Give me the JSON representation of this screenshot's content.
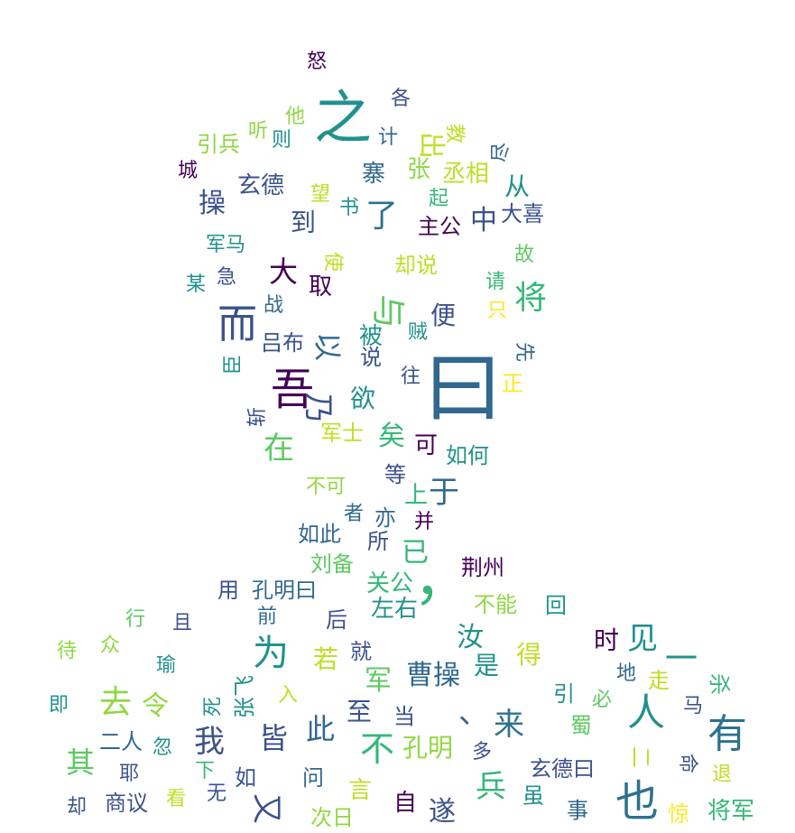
{
  "palette": {
    "dark_purple": "#440154",
    "indigo": "#3b528b",
    "blue": "#31688e",
    "teal": "#21918c",
    "green": "#35b779",
    "lime": "#90d743",
    "yellow": "#fde725"
  },
  "words": [
    {
      "text": "曰",
      "size": 0.39,
      "color": "#31688e"
    },
    {
      "text": "之",
      "size": 0.27,
      "color": "#21918c"
    },
    {
      "text": "吾",
      "size": 0.22,
      "color": "#440154"
    },
    {
      "text": "，",
      "size": 0.22,
      "color": "#35b779"
    },
    {
      "text": "也",
      "size": 0.2,
      "color": "#2c728e"
    },
    {
      "text": "而",
      "size": 0.18,
      "color": "#3b528b"
    },
    {
      "text": "有",
      "size": 0.18,
      "color": "#2c728e"
    },
    {
      "text": "人",
      "size": 0.17,
      "color": "#21918c"
    },
    {
      "text": "为",
      "size": 0.16,
      "color": "#21918c"
    },
    {
      "text": "与",
      "size": 0.16,
      "color": "#5ec962"
    },
    {
      "text": "、",
      "size": 0.15,
      "color": "#31688e"
    },
    {
      "text": "不",
      "size": 0.15,
      "color": "#35b779"
    },
    {
      "text": "乃",
      "size": 0.15,
      "color": "#3b528b"
    },
    {
      "text": "以",
      "size": 0.14,
      "color": "#31688e"
    },
    {
      "text": "将",
      "size": 0.14,
      "color": "#35b779"
    },
    {
      "text": "去",
      "size": 0.14,
      "color": "#90d743"
    },
    {
      "text": "一",
      "size": 0.14,
      "color": "#21918c"
    },
    {
      "text": "兵",
      "size": 0.13,
      "color": "#35b779"
    },
    {
      "text": "来",
      "size": 0.13,
      "color": "#2c728e"
    },
    {
      "text": "我",
      "size": 0.13,
      "color": "#3b528b"
    },
    {
      "text": "此",
      "size": 0.12,
      "color": "#31688e"
    },
    {
      "text": "皆",
      "size": 0.12,
      "color": "#3b528b"
    },
    {
      "text": "又",
      "size": 0.12,
      "color": "#3b528b"
    },
    {
      "text": "见",
      "size": 0.12,
      "color": "#21918c"
    },
    {
      "text": "了",
      "size": 0.12,
      "color": "#2c728e"
    },
    {
      "text": "在",
      "size": 0.12,
      "color": "#5ec962"
    },
    {
      "text": "令",
      "size": 0.11,
      "color": "#90d743"
    },
    {
      "text": "于",
      "size": 0.11,
      "color": "#31688e"
    },
    {
      "text": "曹操",
      "size": 0.11,
      "color": "#31688e"
    },
    {
      "text": "大",
      "size": 0.11,
      "color": "#440154"
    },
    {
      "text": "军",
      "size": 0.11,
      "color": "#5ec962"
    },
    {
      "text": "孔明",
      "size": 0.1,
      "color": "#90d743"
    },
    {
      "text": "其",
      "size": 0.1,
      "color": "#5ec962"
    },
    {
      "text": "矣",
      "size": 0.1,
      "color": "#35b779"
    },
    {
      "text": "欲",
      "size": 0.1,
      "color": "#21918c"
    },
    {
      "text": "已",
      "size": 0.1,
      "color": "#35b779"
    },
    {
      "text": "汝",
      "size": 0.1,
      "color": "#21918c"
    },
    {
      "text": "便",
      "size": 0.1,
      "color": "#3b528b"
    },
    {
      "text": "是",
      "size": 0.1,
      "color": "#21918c"
    },
    {
      "text": "中",
      "size": 0.1,
      "color": "#3b528b"
    },
    {
      "text": "遂",
      "size": 0.1,
      "color": "#3b528b"
    },
    {
      "text": "出",
      "size": 0.1,
      "color": "#bddf26"
    },
    {
      "text": "时",
      "size": 0.1,
      "color": "#440154"
    },
    {
      "text": "关公",
      "size": 0.09,
      "color": "#35b779"
    },
    {
      "text": "将军",
      "size": 0.09,
      "color": "#35b779"
    },
    {
      "text": "取",
      "size": 0.09,
      "color": "#440154"
    },
    {
      "text": "被",
      "size": 0.09,
      "color": "#21918c"
    },
    {
      "text": "上",
      "size": 0.09,
      "color": "#35b779"
    },
    {
      "text": "至",
      "size": 0.09,
      "color": "#3b528b"
    },
    {
      "text": "若",
      "size": 0.09,
      "color": "#bddf26"
    },
    {
      "text": "到",
      "size": 0.09,
      "color": "#3b528b"
    },
    {
      "text": "得",
      "size": 0.09,
      "color": "#bddf26"
    },
    {
      "text": "丞相",
      "size": 0.09,
      "color": "#bddf26"
    },
    {
      "text": "从",
      "size": 0.09,
      "color": "#21918c"
    },
    {
      "text": "操",
      "size": 0.09,
      "color": "#3b528b"
    },
    {
      "text": "玄德",
      "size": 0.09,
      "color": "#3b528b"
    },
    {
      "text": "可",
      "size": 0.09,
      "color": "#440154"
    },
    {
      "text": "自",
      "size": 0.09,
      "color": "#440154"
    },
    {
      "text": "言",
      "size": 0.09,
      "color": "#bddf26"
    },
    {
      "text": "张",
      "size": 0.09,
      "color": "#90d743"
    },
    {
      "text": "寨",
      "size": 0.09,
      "color": "#31688e"
    },
    {
      "text": "左右",
      "size": 0.09,
      "color": "#21918c"
    },
    {
      "text": "孔明曰",
      "size": 0.08,
      "color": "#31688e"
    },
    {
      "text": "却说",
      "size": 0.08,
      "color": "#bddf26"
    },
    {
      "text": "如何",
      "size": 0.08,
      "color": "#21918c"
    },
    {
      "text": "玄德曰",
      "size": 0.08,
      "color": "#3b528b"
    },
    {
      "text": "吕布",
      "size": 0.08,
      "color": "#3b528b"
    },
    {
      "text": "荆州",
      "size": 0.08,
      "color": "#440154"
    },
    {
      "text": "如此",
      "size": 0.08,
      "color": "#31688e"
    },
    {
      "text": "主公",
      "size": 0.08,
      "color": "#440154"
    },
    {
      "text": "军士",
      "size": 0.08,
      "color": "#bddf26"
    },
    {
      "text": "张飞",
      "size": 0.08,
      "color": "#21918c"
    },
    {
      "text": "刘备",
      "size": 0.08,
      "color": "#5ec962"
    },
    {
      "text": "不能",
      "size": 0.08,
      "color": "#90d743"
    },
    {
      "text": "二人",
      "size": 0.08,
      "color": "#31688e"
    },
    {
      "text": "商议",
      "size": 0.08,
      "color": "#3b528b"
    },
    {
      "text": "引兵",
      "size": 0.08,
      "color": "#90d743"
    },
    {
      "text": "大喜",
      "size": 0.08,
      "color": "#3b528b"
    },
    {
      "text": "不可",
      "size": 0.08,
      "color": "#90d743"
    },
    {
      "text": "军马",
      "size": 0.08,
      "color": "#21918c"
    },
    {
      "text": "次日",
      "size": 0.08,
      "color": "#90d743"
    },
    {
      "text": "说",
      "size": 0.08,
      "color": "#3b528b"
    },
    {
      "text": "等",
      "size": 0.08,
      "color": "#3b528b"
    },
    {
      "text": "亦",
      "size": 0.08,
      "color": "#31688e"
    },
    {
      "text": "所",
      "size": 0.08,
      "color": "#3b528b"
    },
    {
      "text": "者",
      "size": 0.08,
      "color": "#31688e"
    },
    {
      "text": "并",
      "size": 0.08,
      "color": "#440154"
    },
    {
      "text": "回",
      "size": 0.08,
      "color": "#21918c"
    },
    {
      "text": "后",
      "size": 0.08,
      "color": "#3b528b"
    },
    {
      "text": "前",
      "size": 0.08,
      "color": "#31688e"
    },
    {
      "text": "用",
      "size": 0.08,
      "color": "#3b528b"
    },
    {
      "text": "就",
      "size": 0.08,
      "color": "#3b528b"
    },
    {
      "text": "当",
      "size": 0.08,
      "color": "#3b528b"
    },
    {
      "text": "问",
      "size": 0.08,
      "color": "#31688e"
    },
    {
      "text": "如",
      "size": 0.08,
      "color": "#3b528b"
    },
    {
      "text": "虽",
      "size": 0.08,
      "color": "#21918c"
    },
    {
      "text": "事",
      "size": 0.08,
      "color": "#31688e"
    },
    {
      "text": "惊",
      "size": 0.08,
      "color": "#fde725"
    },
    {
      "text": "退",
      "size": 0.08,
      "color": "#bddf26"
    },
    {
      "text": "命",
      "size": 0.08,
      "color": "#3b528b"
    },
    {
      "text": "二",
      "size": 0.08,
      "color": "#bddf26"
    },
    {
      "text": "蜀",
      "size": 0.08,
      "color": "#5ec962"
    },
    {
      "text": "多",
      "size": 0.08,
      "color": "#3b528b"
    },
    {
      "text": "必",
      "size": 0.08,
      "color": "#5ec962"
    },
    {
      "text": "引",
      "size": 0.08,
      "color": "#21918c"
    },
    {
      "text": "地",
      "size": 0.08,
      "color": "#31688e"
    },
    {
      "text": "走",
      "size": 0.08,
      "color": "#bddf26"
    },
    {
      "text": "杀",
      "size": 0.08,
      "color": "#35b779"
    },
    {
      "text": "马",
      "size": 0.08,
      "color": "#3b528b"
    },
    {
      "text": "入",
      "size": 0.08,
      "color": "#bddf26"
    },
    {
      "text": "死",
      "size": 0.08,
      "color": "#21918c"
    },
    {
      "text": "下",
      "size": 0.08,
      "color": "#35b779"
    },
    {
      "text": "忽",
      "size": 0.08,
      "color": "#21918c"
    },
    {
      "text": "耶",
      "size": 0.08,
      "color": "#3b528b"
    },
    {
      "text": "看",
      "size": 0.08,
      "color": "#bddf26"
    },
    {
      "text": "无",
      "size": 0.08,
      "color": "#3b528b"
    },
    {
      "text": "却",
      "size": 0.08,
      "color": "#3b528b"
    },
    {
      "text": "即",
      "size": 0.08,
      "color": "#21918c"
    },
    {
      "text": "待",
      "size": 0.08,
      "color": "#90d743"
    },
    {
      "text": "众",
      "size": 0.08,
      "color": "#90d743"
    },
    {
      "text": "瑜",
      "size": 0.08,
      "color": "#21918c"
    },
    {
      "text": "行",
      "size": 0.08,
      "color": "#5ec962"
    },
    {
      "text": "且",
      "size": 0.08,
      "color": "#3b528b"
    },
    {
      "text": "斩",
      "size": 0.08,
      "color": "#3b528b"
    },
    {
      "text": "臣",
      "size": 0.08,
      "color": "#21918c"
    },
    {
      "text": "战",
      "size": 0.08,
      "color": "#31688e"
    },
    {
      "text": "某",
      "size": 0.08,
      "color": "#21918c"
    },
    {
      "text": "急",
      "size": 0.08,
      "color": "#3b528b"
    },
    {
      "text": "使",
      "size": 0.08,
      "color": "#bddf26"
    },
    {
      "text": "望",
      "size": 0.08,
      "color": "#bddf26"
    },
    {
      "text": "书",
      "size": 0.08,
      "color": "#21918c"
    },
    {
      "text": "起",
      "size": 0.08,
      "color": "#35b779"
    },
    {
      "text": "城",
      "size": 0.08,
      "color": "#440154"
    },
    {
      "text": "听",
      "size": 0.08,
      "color": "#90d743"
    },
    {
      "text": "他",
      "size": 0.08,
      "color": "#90d743"
    },
    {
      "text": "则",
      "size": 0.08,
      "color": "#21918c"
    },
    {
      "text": "计",
      "size": 0.08,
      "color": "#31688e"
    },
    {
      "text": "各",
      "size": 0.08,
      "color": "#3b528b"
    },
    {
      "text": "怒",
      "size": 0.08,
      "color": "#440154"
    },
    {
      "text": "教",
      "size": 0.08,
      "color": "#bddf26"
    },
    {
      "text": "尽",
      "size": 0.08,
      "color": "#31688e"
    },
    {
      "text": "故",
      "size": 0.08,
      "color": "#5ec962"
    },
    {
      "text": "请",
      "size": 0.08,
      "color": "#35b779"
    },
    {
      "text": "只",
      "size": 0.08,
      "color": "#fde725"
    },
    {
      "text": "先",
      "size": 0.08,
      "color": "#31688e"
    },
    {
      "text": "贼",
      "size": 0.08,
      "color": "#21918c"
    },
    {
      "text": "往",
      "size": 0.08,
      "color": "#3b528b"
    },
    {
      "text": "正",
      "size": 0.08,
      "color": "#fde725"
    }
  ]
}
